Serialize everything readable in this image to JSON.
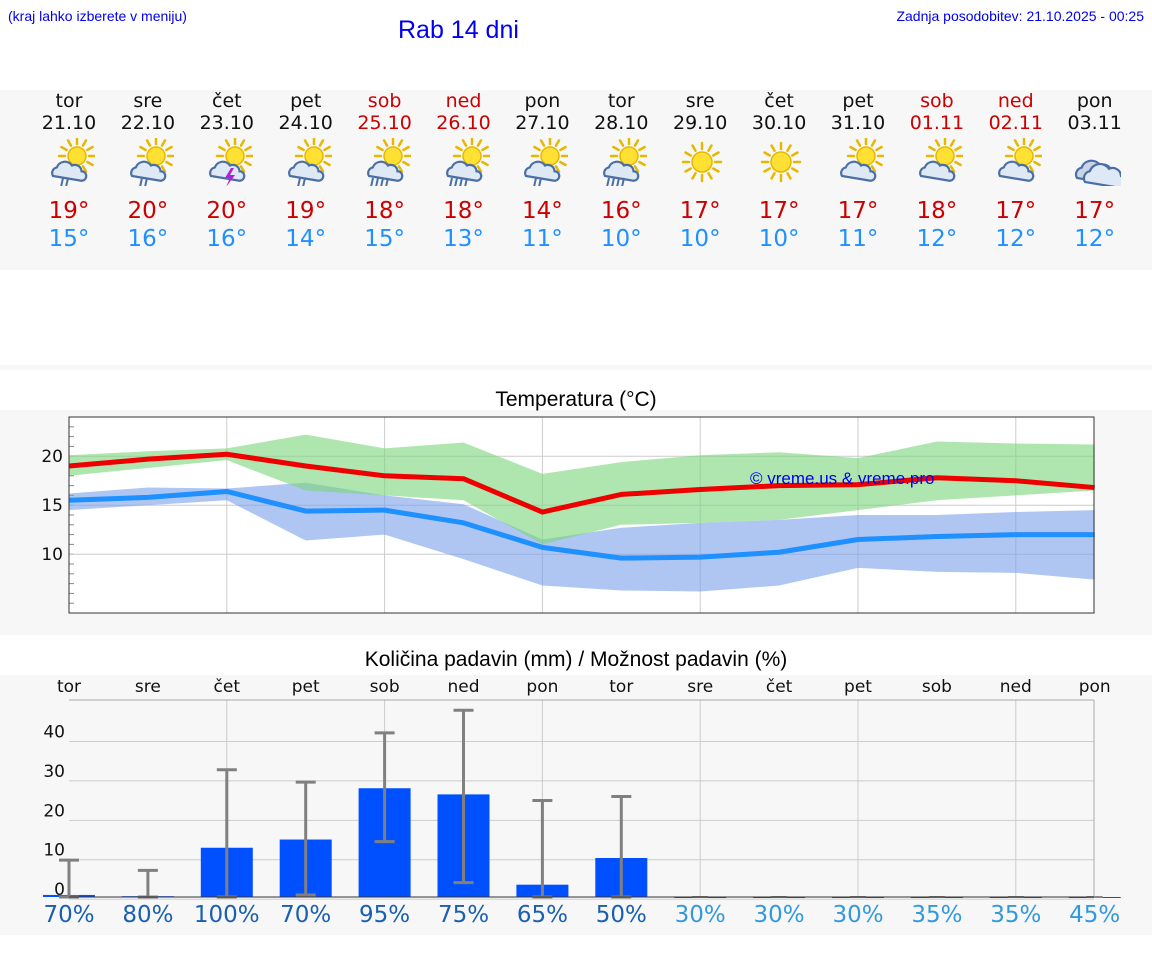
{
  "header": {
    "left_note": "(kraj lahko izberete v meniju)",
    "title": "Rab 14 dni",
    "updated": "Zadnja posodobitev: 21.10.2025 - 00:25"
  },
  "colors": {
    "link": "#0000ee",
    "max_temp": "#cc0000",
    "min_temp": "#1e90ff",
    "bar": "#0050ff",
    "high_pct": "#1a5fb0",
    "low_pct": "#3399dd"
  },
  "days": [
    {
      "name": "tor",
      "date": "21.10",
      "weekend": false,
      "icon": "sun-cloud-rain-icon",
      "max": "19°",
      "min": "15°"
    },
    {
      "name": "sre",
      "date": "22.10",
      "weekend": false,
      "icon": "sun-cloud-rain-icon",
      "max": "20°",
      "min": "16°"
    },
    {
      "name": "čet",
      "date": "23.10",
      "weekend": false,
      "icon": "sun-thunder-icon",
      "max": "20°",
      "min": "16°"
    },
    {
      "name": "pet",
      "date": "24.10",
      "weekend": false,
      "icon": "sun-cloud-rain-icon",
      "max": "19°",
      "min": "14°"
    },
    {
      "name": "sob",
      "date": "25.10",
      "weekend": true,
      "icon": "sun-cloud-heavy-rain-icon",
      "max": "18°",
      "min": "15°"
    },
    {
      "name": "ned",
      "date": "26.10",
      "weekend": true,
      "icon": "sun-cloud-heavy-rain-icon",
      "max": "18°",
      "min": "13°"
    },
    {
      "name": "pon",
      "date": "27.10",
      "weekend": false,
      "icon": "sun-cloud-rain-icon",
      "max": "14°",
      "min": "11°"
    },
    {
      "name": "tor",
      "date": "28.10",
      "weekend": false,
      "icon": "sun-cloud-heavy-rain-icon",
      "max": "16°",
      "min": "10°"
    },
    {
      "name": "sre",
      "date": "29.10",
      "weekend": false,
      "icon": "sun-icon",
      "max": "17°",
      "min": "10°"
    },
    {
      "name": "čet",
      "date": "30.10",
      "weekend": false,
      "icon": "sun-icon",
      "max": "17°",
      "min": "10°"
    },
    {
      "name": "pet",
      "date": "31.10",
      "weekend": false,
      "icon": "sun-cloud-icon",
      "max": "17°",
      "min": "11°"
    },
    {
      "name": "sob",
      "date": "01.11",
      "weekend": true,
      "icon": "sun-cloud-icon",
      "max": "18°",
      "min": "12°"
    },
    {
      "name": "ned",
      "date": "02.11",
      "weekend": true,
      "icon": "sun-cloud-icon",
      "max": "17°",
      "min": "12°"
    },
    {
      "name": "pon",
      "date": "03.11",
      "weekend": false,
      "icon": "cloudy-icon",
      "max": "17°",
      "min": "12°"
    }
  ],
  "chart_data": [
    {
      "type": "line",
      "title": "Temperatura (°C)",
      "watermark": "© vreme.us & vreme.pro",
      "ylim": [
        4,
        24
      ],
      "yticks": [
        10,
        15,
        20
      ],
      "grid": true,
      "series": [
        {
          "name": "max",
          "color": "#ee0000",
          "values": [
            19,
            19.7,
            20.2,
            19,
            18,
            17.7,
            14.3,
            16.1,
            16.6,
            17,
            17.1,
            17.8,
            17.5,
            16.8
          ]
        },
        {
          "name": "min",
          "color": "#1e90ff",
          "values": [
            15.5,
            15.8,
            16.4,
            14.4,
            14.5,
            13.2,
            10.7,
            9.6,
            9.7,
            10.2,
            11.5,
            11.8,
            12,
            12
          ]
        }
      ],
      "bands": [
        {
          "name": "max-range",
          "color": "#7ad67a",
          "low": [
            18,
            18.8,
            19.6,
            16.5,
            16,
            15.5,
            11,
            13,
            13.2,
            13.5,
            14.5,
            15.5,
            16,
            16.5
          ],
          "high": [
            20.1,
            20.5,
            20.8,
            22.2,
            20.8,
            21.4,
            18.2,
            19.4,
            20.1,
            20.4,
            19.8,
            21.5,
            21.3,
            21.2
          ]
        },
        {
          "name": "min-range",
          "color": "#7aa0ea",
          "low": [
            14.5,
            15,
            15.5,
            11.4,
            12,
            9.5,
            6.8,
            6.3,
            6.2,
            6.8,
            8.6,
            8.2,
            8.1,
            7.4
          ],
          "high": [
            16.2,
            16.8,
            16.7,
            17.3,
            16,
            15.1,
            11.5,
            12.7,
            13.2,
            13.5,
            14,
            14,
            14.3,
            14.5
          ]
        }
      ]
    },
    {
      "type": "bar",
      "title": "Količina padavin (mm) / Možnost padavin (%)",
      "categories": [
        "tor",
        "sre",
        "čet",
        "pet",
        "sob",
        "ned",
        "pon",
        "tor",
        "sre",
        "čet",
        "pet",
        "sob",
        "ned",
        "pon"
      ],
      "ylim": [
        -2,
        48
      ],
      "yticks": [
        0,
        10,
        20,
        30,
        40
      ],
      "values": [
        0.5,
        0.2,
        12,
        14,
        26.5,
        25,
        3,
        9.5,
        0,
        0,
        0,
        0,
        0,
        0
      ],
      "err_low": [
        0,
        0,
        0,
        0.5,
        13.5,
        3.5,
        0,
        0,
        0,
        0,
        0,
        0,
        0,
        0
      ],
      "err_high": [
        9,
        6.5,
        31,
        28,
        40,
        45.5,
        23.5,
        24.5,
        0,
        0,
        0,
        0,
        0,
        0
      ],
      "probability": [
        "70%",
        "80%",
        "100%",
        "70%",
        "95%",
        "75%",
        "65%",
        "50%",
        "30%",
        "30%",
        "30%",
        "35%",
        "35%",
        "45%"
      ]
    }
  ]
}
